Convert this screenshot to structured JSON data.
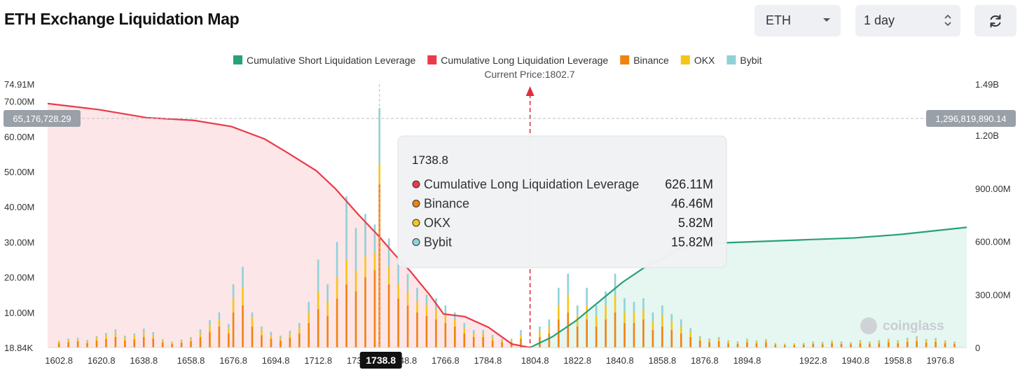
{
  "page": {
    "title": "ETH Exchange Liquidation Map"
  },
  "controls": {
    "symbol": "ETH",
    "range": "1 day"
  },
  "icons": {
    "refresh": "refresh-icon",
    "dropdown": "chevron-down-icon",
    "stepper": "up-down-chevron-icon",
    "logo": "coinglass-frog-icon"
  },
  "colors": {
    "short": "#26a17b",
    "long": "#ea3b49",
    "binance": "#f0820f",
    "okx": "#f5c518",
    "bybit": "#8fd2d6",
    "short_fill": "#e3f5ee",
    "long_fill": "#fde2e4"
  },
  "watermark": "coinglass",
  "chart_data": {
    "type": "bar",
    "title": "ETH Exchange Liquidation Map",
    "current_price_label": "Current Price:1802.7",
    "current_price": 1802.7,
    "legend": [
      {
        "name": "Cumulative Short Liquidation Leverage",
        "color": "#26a17b"
      },
      {
        "name": "Cumulative Long Liquidation Leverage",
        "color": "#ea3b49"
      },
      {
        "name": "Binance",
        "color": "#f0820f"
      },
      {
        "name": "OKX",
        "color": "#f5c518"
      },
      {
        "name": "Bybit",
        "color": "#8fd2d6"
      }
    ],
    "x_range": [
      1598,
      1988
    ],
    "x_ticks": [
      "1602.8",
      "1620.8",
      "1638.8",
      "1658.8",
      "1676.8",
      "1694.8",
      "1712.8",
      "1730.8",
      "1748.8",
      "1766.8",
      "1784.8",
      "1804.8",
      "1822.8",
      "1840.8",
      "1858.8",
      "1876.8",
      "1894.8",
      "1922.8",
      "1940.8",
      "1958.8",
      "1976.8"
    ],
    "y_left": {
      "range": [
        0,
        74.91
      ],
      "unit": "M",
      "ticks": [
        "74.91M",
        "70.00M",
        "60.00M",
        "50.00M",
        "40.00M",
        "30.00M",
        "20.00M",
        "10.00M",
        "18.84K"
      ]
    },
    "y_right": {
      "range": [
        0,
        1490
      ],
      "unit": "M",
      "ticks": [
        "1.49B",
        "1.20B",
        "900.00M",
        "600.00M",
        "300.00M",
        "0"
      ]
    },
    "crosshair": {
      "x": 1738.8,
      "x_label": "1738.8",
      "y_left_label": "65,176,728.29",
      "y_right_label": "1,296,819,890.14"
    },
    "tooltip": {
      "title": "1738.8",
      "rows": [
        {
          "name": "Cumulative Long Liquidation Leverage",
          "value": "626.11M",
          "color": "#ea3b49"
        },
        {
          "name": "Binance",
          "value": "46.46M",
          "color": "#f0820f"
        },
        {
          "name": "OKX",
          "value": "5.82M",
          "color": "#f5c518"
        },
        {
          "name": "Bybit",
          "value": "15.82M",
          "color": "#8fd2d6"
        }
      ]
    },
    "series": [
      {
        "name": "Cumulative Long Liquidation Leverage",
        "axis": "right",
        "x": [
          1598,
          1620,
          1640,
          1660,
          1676,
          1690,
          1700,
          1712,
          1720,
          1730,
          1738.8,
          1745,
          1752,
          1760,
          1766,
          1775,
          1785,
          1795,
          1802.7
        ],
        "y": [
          1380,
          1345,
          1300,
          1285,
          1250,
          1180,
          1100,
          1000,
          900,
          750,
          626,
          530,
          430,
          300,
          190,
          175,
          115,
          20,
          0
        ]
      },
      {
        "name": "Cumulative Short Liquidation Leverage",
        "axis": "right",
        "x": [
          1802.7,
          1812,
          1822,
          1832,
          1842,
          1852,
          1860,
          1866,
          1880,
          1900,
          1920,
          1940,
          1960,
          1988
        ],
        "y": [
          0,
          60,
          150,
          260,
          370,
          460,
          510,
          560,
          590,
          600,
          610,
          620,
          640,
          680
        ]
      }
    ],
    "bars": [
      {
        "x": 1602.8,
        "binance": 1.2,
        "okx": 0.4,
        "bybit": 0.3
      },
      {
        "x": 1606.8,
        "binance": 1.5,
        "okx": 0.6,
        "bybit": 0.5
      },
      {
        "x": 1610.8,
        "binance": 1.8,
        "okx": 0.6,
        "bybit": 0.4
      },
      {
        "x": 1614.8,
        "binance": 1.3,
        "okx": 0.5,
        "bybit": 0.4
      },
      {
        "x": 1618.8,
        "binance": 2.0,
        "okx": 0.8,
        "bybit": 0.5
      },
      {
        "x": 1622.8,
        "binance": 2.4,
        "okx": 1.0,
        "bybit": 0.8
      },
      {
        "x": 1626.8,
        "binance": 3.0,
        "okx": 1.2,
        "bybit": 1.0
      },
      {
        "x": 1630.8,
        "binance": 2.0,
        "okx": 0.8,
        "bybit": 0.6
      },
      {
        "x": 1634.8,
        "binance": 2.3,
        "okx": 1.0,
        "bybit": 0.7
      },
      {
        "x": 1638.8,
        "binance": 3.0,
        "okx": 1.2,
        "bybit": 1.2
      },
      {
        "x": 1642.8,
        "binance": 2.6,
        "okx": 1.0,
        "bybit": 0.8
      },
      {
        "x": 1646.8,
        "binance": 1.5,
        "okx": 0.5,
        "bybit": 0.4
      },
      {
        "x": 1650.8,
        "binance": 1.0,
        "okx": 0.4,
        "bybit": 0.3
      },
      {
        "x": 1654.8,
        "binance": 1.4,
        "okx": 0.5,
        "bybit": 0.4
      },
      {
        "x": 1658.8,
        "binance": 1.8,
        "okx": 0.7,
        "bybit": 0.5
      },
      {
        "x": 1662.8,
        "binance": 3.0,
        "okx": 1.2,
        "bybit": 1.0
      },
      {
        "x": 1666.8,
        "binance": 4.5,
        "okx": 1.8,
        "bybit": 1.5
      },
      {
        "x": 1670.8,
        "binance": 6.0,
        "okx": 2.0,
        "bybit": 2.0
      },
      {
        "x": 1674.8,
        "binance": 4.0,
        "okx": 1.5,
        "bybit": 1.2
      },
      {
        "x": 1676.8,
        "binance": 10.0,
        "okx": 4.0,
        "bybit": 4.0
      },
      {
        "x": 1680.8,
        "binance": 12.0,
        "okx": 5.0,
        "bybit": 6.0
      },
      {
        "x": 1684.8,
        "binance": 6.0,
        "okx": 2.5,
        "bybit": 1.5
      },
      {
        "x": 1688.8,
        "binance": 3.5,
        "okx": 1.5,
        "bybit": 1.0
      },
      {
        "x": 1692.8,
        "binance": 2.5,
        "okx": 1.0,
        "bybit": 1.0
      },
      {
        "x": 1696.8,
        "binance": 2.0,
        "okx": 0.8,
        "bybit": 0.6
      },
      {
        "x": 1700.8,
        "binance": 2.8,
        "okx": 1.0,
        "bybit": 1.0
      },
      {
        "x": 1704.8,
        "binance": 4.0,
        "okx": 1.5,
        "bybit": 1.5
      },
      {
        "x": 1708.8,
        "binance": 7.0,
        "okx": 3.0,
        "bybit": 3.0
      },
      {
        "x": 1712.8,
        "binance": 11.0,
        "okx": 5.0,
        "bybit": 9.0
      },
      {
        "x": 1716.8,
        "binance": 9.0,
        "okx": 4.0,
        "bybit": 5.0
      },
      {
        "x": 1720.8,
        "binance": 14.0,
        "okx": 6.0,
        "bybit": 10.0
      },
      {
        "x": 1724.8,
        "binance": 18.0,
        "okx": 7.0,
        "bybit": 18.0
      },
      {
        "x": 1728.8,
        "binance": 16.0,
        "okx": 6.0,
        "bybit": 12.0
      },
      {
        "x": 1732.8,
        "binance": 20.0,
        "okx": 6.0,
        "bybit": 12.0
      },
      {
        "x": 1736.8,
        "binance": 22.0,
        "okx": 5.0,
        "bybit": 8.0
      },
      {
        "x": 1738.8,
        "binance": 46.46,
        "okx": 5.82,
        "bybit": 15.82
      },
      {
        "x": 1742.8,
        "binance": 18.0,
        "okx": 5.0,
        "bybit": 8.0
      },
      {
        "x": 1746.8,
        "binance": 14.0,
        "okx": 4.0,
        "bybit": 6.0
      },
      {
        "x": 1750.8,
        "binance": 12.0,
        "okx": 4.0,
        "bybit": 5.0
      },
      {
        "x": 1754.8,
        "binance": 10.0,
        "okx": 3.0,
        "bybit": 4.0
      },
      {
        "x": 1758.8,
        "binance": 9.0,
        "okx": 3.0,
        "bybit": 3.0
      },
      {
        "x": 1762.8,
        "binance": 8.0,
        "okx": 3.0,
        "bybit": 3.0
      },
      {
        "x": 1766.8,
        "binance": 7.0,
        "okx": 2.0,
        "bybit": 3.0
      },
      {
        "x": 1770.8,
        "binance": 6.0,
        "okx": 2.0,
        "bybit": 2.0
      },
      {
        "x": 1774.8,
        "binance": 4.0,
        "okx": 1.5,
        "bybit": 1.5
      },
      {
        "x": 1778.8,
        "binance": 3.0,
        "okx": 1.0,
        "bybit": 1.0
      },
      {
        "x": 1782.8,
        "binance": 3.0,
        "okx": 1.0,
        "bybit": 1.0
      },
      {
        "x": 1786.8,
        "binance": 2.0,
        "okx": 0.8,
        "bybit": 0.8
      },
      {
        "x": 1790.8,
        "binance": 1.5,
        "okx": 0.5,
        "bybit": 0.5
      },
      {
        "x": 1794.8,
        "binance": 1.5,
        "okx": 0.5,
        "bybit": 0.5
      },
      {
        "x": 1798.8,
        "binance": 2.5,
        "okx": 1.0,
        "bybit": 1.5
      },
      {
        "x": 1806.8,
        "binance": 3.0,
        "okx": 1.5,
        "bybit": 1.5
      },
      {
        "x": 1810.8,
        "binance": 4.0,
        "okx": 2.0,
        "bybit": 2.0
      },
      {
        "x": 1814.8,
        "binance": 8.0,
        "okx": 4.0,
        "bybit": 5.0
      },
      {
        "x": 1818.8,
        "binance": 10.0,
        "okx": 5.0,
        "bybit": 6.0
      },
      {
        "x": 1822.8,
        "binance": 6.0,
        "okx": 3.0,
        "bybit": 3.0
      },
      {
        "x": 1826.8,
        "binance": 8.0,
        "okx": 4.0,
        "bybit": 5.0
      },
      {
        "x": 1830.8,
        "binance": 6.0,
        "okx": 3.0,
        "bybit": 3.0
      },
      {
        "x": 1834.8,
        "binance": 8.0,
        "okx": 4.0,
        "bybit": 4.0
      },
      {
        "x": 1838.8,
        "binance": 10.0,
        "okx": 5.0,
        "bybit": 6.0
      },
      {
        "x": 1842.8,
        "binance": 7.0,
        "okx": 3.0,
        "bybit": 4.0
      },
      {
        "x": 1846.8,
        "binance": 7.0,
        "okx": 3.0,
        "bybit": 3.0
      },
      {
        "x": 1850.8,
        "binance": 8.0,
        "okx": 3.0,
        "bybit": 3.0
      },
      {
        "x": 1854.8,
        "binance": 5.0,
        "okx": 2.5,
        "bybit": 2.5
      },
      {
        "x": 1858.8,
        "binance": 6.0,
        "okx": 3.0,
        "bybit": 3.0
      },
      {
        "x": 1862.8,
        "binance": 5.0,
        "okx": 2.5,
        "bybit": 2.0
      },
      {
        "x": 1866.8,
        "binance": 4.0,
        "okx": 2.0,
        "bybit": 2.0
      },
      {
        "x": 1870.8,
        "binance": 3.0,
        "okx": 1.5,
        "bybit": 1.0
      },
      {
        "x": 1874.8,
        "binance": 2.0,
        "okx": 0.8,
        "bybit": 0.5
      },
      {
        "x": 1878.8,
        "binance": 1.5,
        "okx": 0.6,
        "bybit": 0.5
      },
      {
        "x": 1882.8,
        "binance": 1.8,
        "okx": 0.7,
        "bybit": 0.5
      },
      {
        "x": 1886.8,
        "binance": 1.2,
        "okx": 0.5,
        "bybit": 0.4
      },
      {
        "x": 1890.8,
        "binance": 1.0,
        "okx": 0.4,
        "bybit": 0.3
      },
      {
        "x": 1894.8,
        "binance": 1.5,
        "okx": 0.6,
        "bybit": 0.4
      },
      {
        "x": 1898.8,
        "binance": 1.2,
        "okx": 0.5,
        "bybit": 0.3
      },
      {
        "x": 1902.8,
        "binance": 1.5,
        "okx": 0.6,
        "bybit": 0.3
      },
      {
        "x": 1906.8,
        "binance": 0.8,
        "okx": 0.3,
        "bybit": 0.2
      },
      {
        "x": 1910.8,
        "binance": 0.6,
        "okx": 0.3,
        "bybit": 0.2
      },
      {
        "x": 1914.8,
        "binance": 0.7,
        "okx": 0.3,
        "bybit": 0.2
      },
      {
        "x": 1918.8,
        "binance": 0.8,
        "okx": 0.3,
        "bybit": 0.2
      },
      {
        "x": 1922.8,
        "binance": 1.0,
        "okx": 0.4,
        "bybit": 0.3
      },
      {
        "x": 1926.8,
        "binance": 0.9,
        "okx": 0.4,
        "bybit": 0.3
      },
      {
        "x": 1930.8,
        "binance": 1.2,
        "okx": 0.5,
        "bybit": 0.3
      },
      {
        "x": 1934.8,
        "binance": 1.0,
        "okx": 0.4,
        "bybit": 0.3
      },
      {
        "x": 1938.8,
        "binance": 0.9,
        "okx": 0.3,
        "bybit": 0.3
      },
      {
        "x": 1942.8,
        "binance": 1.2,
        "okx": 0.5,
        "bybit": 0.4
      },
      {
        "x": 1946.8,
        "binance": 1.0,
        "okx": 0.4,
        "bybit": 0.3
      },
      {
        "x": 1950.8,
        "binance": 1.2,
        "okx": 0.5,
        "bybit": 0.4
      },
      {
        "x": 1954.8,
        "binance": 1.5,
        "okx": 0.6,
        "bybit": 0.4
      },
      {
        "x": 1958.8,
        "binance": 1.2,
        "okx": 0.5,
        "bybit": 0.4
      },
      {
        "x": 1962.8,
        "binance": 1.6,
        "okx": 0.7,
        "bybit": 0.5
      },
      {
        "x": 1966.8,
        "binance": 1.8,
        "okx": 0.8,
        "bybit": 0.6
      },
      {
        "x": 1970.8,
        "binance": 1.4,
        "okx": 0.6,
        "bybit": 0.4
      },
      {
        "x": 1974.8,
        "binance": 1.6,
        "okx": 0.6,
        "bybit": 0.5
      },
      {
        "x": 1978.8,
        "binance": 1.2,
        "okx": 0.5,
        "bybit": 0.3
      },
      {
        "x": 1982.8,
        "binance": 1.0,
        "okx": 0.4,
        "bybit": 0.3
      }
    ]
  }
}
